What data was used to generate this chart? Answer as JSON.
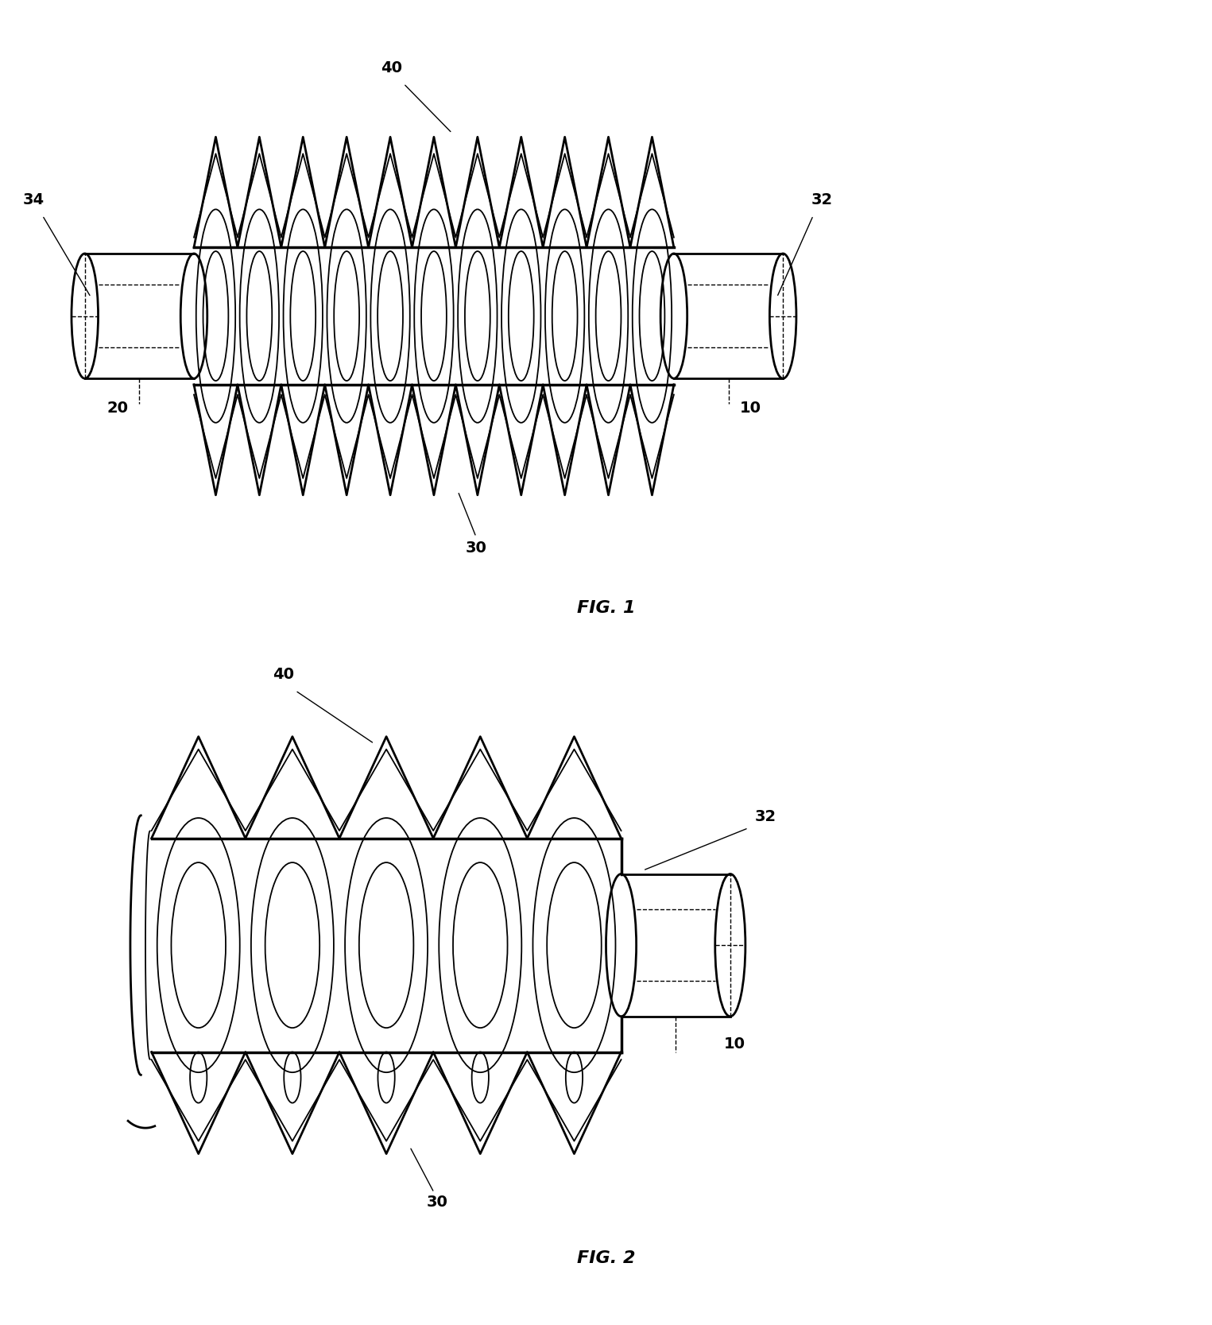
{
  "bg_color": "#ffffff",
  "line_color": "#000000",
  "fig_width": 15.25,
  "fig_height": 16.67,
  "lw_main": 2.0,
  "lw_thick": 2.5,
  "lw_thin": 1.3,
  "fs_label": 14,
  "fs_caption": 16
}
